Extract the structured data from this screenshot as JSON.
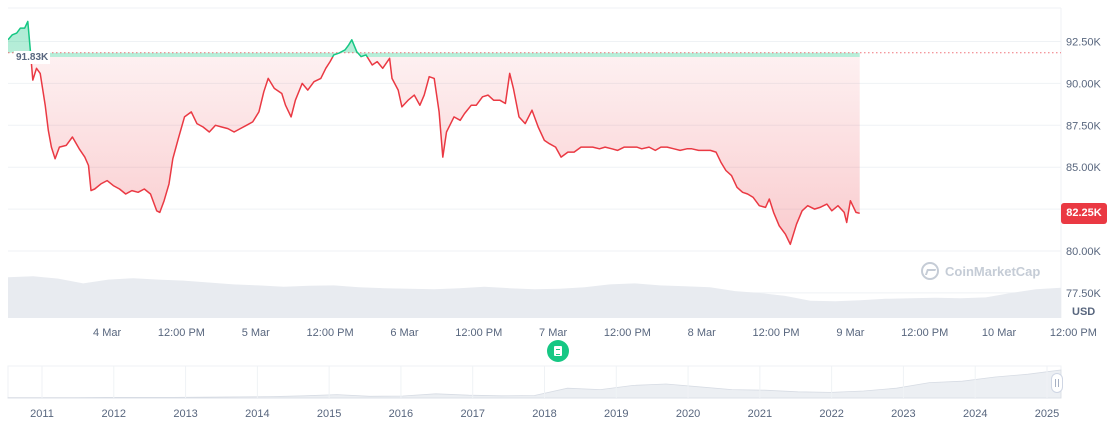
{
  "chart_data": {
    "type": "line",
    "currency": "USD",
    "ylim": [
      76000,
      94500
    ],
    "y_ticks": [
      "77.50K",
      "80.00K",
      "82.50K",
      "85.00K",
      "87.50K",
      "90.00K",
      "92.50K"
    ],
    "y_tick_values": [
      77500,
      80000,
      82500,
      85000,
      87500,
      90000,
      92500
    ],
    "x_range_hours": [
      0,
      170
    ],
    "x_ticks": [
      {
        "label": "4 Mar",
        "h": 16
      },
      {
        "label": "12:00 PM",
        "h": 28
      },
      {
        "label": "5 Mar",
        "h": 40
      },
      {
        "label": "12:00 PM",
        "h": 52
      },
      {
        "label": "6 Mar",
        "h": 64
      },
      {
        "label": "12:00 PM",
        "h": 76
      },
      {
        "label": "7 Mar",
        "h": 88
      },
      {
        "label": "12:00 PM",
        "h": 100
      },
      {
        "label": "8 Mar",
        "h": 112
      },
      {
        "label": "12:00 PM",
        "h": 124
      },
      {
        "label": "9 Mar",
        "h": 136
      },
      {
        "label": "12:00 PM",
        "h": 148
      },
      {
        "label": "10 Mar",
        "h": 160
      },
      {
        "label": "12:00 PM",
        "h": 172
      }
    ],
    "open_price": 91830,
    "open_price_label": "91.83K",
    "current_price_label": "82.25K",
    "current_price": 82250,
    "series": [
      {
        "points": [
          [
            0,
            92600
          ],
          [
            0.7,
            92900
          ],
          [
            1.4,
            93000
          ],
          [
            2,
            93300
          ],
          [
            2.7,
            93300
          ],
          [
            3.2,
            93700
          ],
          [
            3.6,
            92000
          ],
          [
            4,
            90200
          ],
          [
            4.6,
            90900
          ],
          [
            5.2,
            90600
          ],
          [
            6,
            88700
          ],
          [
            6.5,
            87200
          ],
          [
            7,
            86200
          ],
          [
            7.6,
            85500
          ],
          [
            8.3,
            86200
          ],
          [
            9.4,
            86300
          ],
          [
            10.4,
            86800
          ],
          [
            11.5,
            86100
          ],
          [
            12.4,
            85600
          ],
          [
            13,
            85100
          ],
          [
            13.4,
            83600
          ],
          [
            14,
            83700
          ],
          [
            15,
            84000
          ],
          [
            16,
            84200
          ],
          [
            17,
            83900
          ],
          [
            18,
            83700
          ],
          [
            19,
            83400
          ],
          [
            20,
            83600
          ],
          [
            21,
            83500
          ],
          [
            22,
            83700
          ],
          [
            23,
            83400
          ],
          [
            24,
            82400
          ],
          [
            24.5,
            82300
          ],
          [
            25.2,
            83000
          ],
          [
            26,
            84000
          ],
          [
            26.6,
            85500
          ],
          [
            27.5,
            86700
          ],
          [
            28.5,
            88000
          ],
          [
            29.6,
            88300
          ],
          [
            30.5,
            87600
          ],
          [
            31.5,
            87400
          ],
          [
            32.5,
            87100
          ],
          [
            33.5,
            87500
          ],
          [
            34.5,
            87400
          ],
          [
            35.5,
            87300
          ],
          [
            36.5,
            87100
          ],
          [
            37.5,
            87300
          ],
          [
            38.5,
            87500
          ],
          [
            39.5,
            87700
          ],
          [
            40.5,
            88300
          ],
          [
            41.3,
            89500
          ],
          [
            42,
            90300
          ],
          [
            43,
            89700
          ],
          [
            44.2,
            89400
          ],
          [
            44.8,
            88700
          ],
          [
            45.7,
            88000
          ],
          [
            46.4,
            89000
          ],
          [
            47.5,
            90000
          ],
          [
            48.4,
            89600
          ],
          [
            49.4,
            90100
          ],
          [
            50.5,
            90300
          ],
          [
            51.3,
            90900
          ],
          [
            52,
            91300
          ],
          [
            52.6,
            91700
          ],
          [
            53.4,
            91800
          ],
          [
            54.4,
            92000
          ],
          [
            55,
            92300
          ],
          [
            55.5,
            92600
          ],
          [
            56.3,
            91900
          ],
          [
            57,
            91600
          ],
          [
            57.8,
            91700
          ],
          [
            58.8,
            91100
          ],
          [
            59.6,
            91300
          ],
          [
            60.5,
            90900
          ],
          [
            61.6,
            91500
          ],
          [
            62,
            90300
          ],
          [
            63,
            89600
          ],
          [
            63.6,
            88600
          ],
          [
            64.6,
            89000
          ],
          [
            65.6,
            89300
          ],
          [
            66.5,
            88700
          ],
          [
            67.2,
            89300
          ],
          [
            68,
            90400
          ],
          [
            68.8,
            90300
          ],
          [
            69.6,
            88300
          ],
          [
            70.2,
            85600
          ],
          [
            70.8,
            87100
          ],
          [
            72,
            88000
          ],
          [
            73,
            87800
          ],
          [
            73.7,
            88200
          ],
          [
            74.8,
            88700
          ],
          [
            75.6,
            88700
          ],
          [
            76.6,
            89200
          ],
          [
            77.5,
            89300
          ],
          [
            78.4,
            89000
          ],
          [
            79.4,
            89000
          ],
          [
            80.3,
            88800
          ],
          [
            81,
            90600
          ],
          [
            81.6,
            89700
          ],
          [
            82.5,
            88000
          ],
          [
            83.5,
            87600
          ],
          [
            84.6,
            88400
          ],
          [
            85.6,
            87400
          ],
          [
            86.6,
            86600
          ],
          [
            87.4,
            86400
          ],
          [
            88.4,
            86200
          ],
          [
            89.3,
            85600
          ],
          [
            90.4,
            85900
          ],
          [
            91.4,
            85900
          ],
          [
            92.5,
            86200
          ],
          [
            93.5,
            86200
          ],
          [
            94.4,
            86200
          ],
          [
            95.5,
            86100
          ],
          [
            96.4,
            86200
          ],
          [
            97.5,
            86100
          ],
          [
            98.4,
            86000
          ],
          [
            99.5,
            86200
          ],
          [
            100.4,
            86200
          ],
          [
            101.5,
            86200
          ],
          [
            102.3,
            86100
          ],
          [
            103.5,
            86200
          ],
          [
            104.5,
            86000
          ],
          [
            105.4,
            86200
          ],
          [
            106.4,
            86200
          ],
          [
            107.5,
            86100
          ],
          [
            108.5,
            86000
          ],
          [
            109.6,
            86100
          ],
          [
            110.4,
            86100
          ],
          [
            111.5,
            86000
          ],
          [
            112.5,
            86000
          ],
          [
            113.4,
            86000
          ],
          [
            114.3,
            85900
          ],
          [
            115.1,
            85300
          ],
          [
            115.9,
            84800
          ],
          [
            116.8,
            84500
          ],
          [
            117.7,
            83800
          ],
          [
            118.6,
            83500
          ],
          [
            119.4,
            83400
          ],
          [
            120.3,
            83200
          ],
          [
            121.3,
            82700
          ],
          [
            122.3,
            82600
          ],
          [
            122.9,
            83100
          ],
          [
            123.6,
            82300
          ],
          [
            124.5,
            81500
          ],
          [
            125.5,
            81000
          ],
          [
            126.3,
            80400
          ],
          [
            127.3,
            81600
          ],
          [
            128.2,
            82400
          ],
          [
            129.1,
            82700
          ],
          [
            130.2,
            82500
          ],
          [
            131.1,
            82600
          ],
          [
            132.2,
            82800
          ],
          [
            133,
            82400
          ],
          [
            134,
            82700
          ],
          [
            135,
            82300
          ],
          [
            135.4,
            81700
          ],
          [
            136,
            83000
          ],
          [
            136.9,
            82300
          ],
          [
            137.5,
            82250
          ]
        ]
      }
    ],
    "volume_note": "volume area shown beneath price line",
    "volume": [
      8.5,
      8.7,
      8.2,
      7.2,
      8,
      8.3,
      8,
      7.8,
      7.4,
      7,
      6.8,
      6.5,
      6.7,
      6.8,
      6.4,
      6.2,
      6.1,
      6,
      6.2,
      6.5,
      6.2,
      6,
      6.1,
      6.4,
      7,
      7.2,
      6.8,
      6.6,
      6.4,
      5.6,
      5.2,
      4.6,
      3.6,
      3.5,
      3.7,
      4,
      4.1,
      4.2,
      4.1,
      4.3,
      5.2,
      6,
      6.3
    ],
    "navigator": {
      "year_labels": [
        "2011",
        "2012",
        "2013",
        "2014",
        "2015",
        "2016",
        "2017",
        "2018",
        "2019",
        "2020",
        "2021",
        "2022",
        "2023",
        "2024",
        "2025"
      ],
      "levels": [
        0.01,
        0.01,
        0.01,
        0.02,
        0.02,
        0.02,
        0.03,
        0.04,
        0.05,
        0.08,
        0.12,
        0.06,
        0.07,
        0.15,
        0.1,
        0.08,
        0.09,
        0.35,
        0.3,
        0.45,
        0.5,
        0.4,
        0.3,
        0.28,
        0.22,
        0.2,
        0.25,
        0.35,
        0.55,
        0.6,
        0.75,
        0.85,
        1.0
      ]
    }
  },
  "watermark": "CoinMarketCap",
  "colors": {
    "down": "#ea3943",
    "up": "#16c784",
    "grid": "#eff2f5",
    "volume": "#e8ebf0"
  },
  "icons": {
    "news": "news-document-icon",
    "handle": "range-handle-icon",
    "logo": "coinmarketcap-logo-icon"
  }
}
